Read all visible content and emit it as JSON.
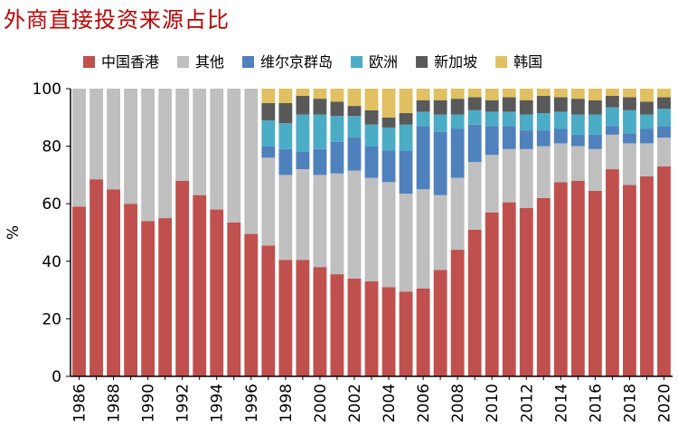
{
  "chart_data": {
    "type": "bar",
    "stacked": true,
    "title": "外商直接投资来源占比",
    "ylabel": "%",
    "ylim": [
      0,
      100
    ],
    "yticks": [
      0,
      20,
      40,
      60,
      80,
      100
    ],
    "x": [
      1986,
      1987,
      1988,
      1989,
      1990,
      1991,
      1992,
      1993,
      1994,
      1995,
      1996,
      1997,
      1998,
      1999,
      2000,
      2001,
      2002,
      2003,
      2004,
      2005,
      2006,
      2007,
      2008,
      2009,
      2010,
      2011,
      2012,
      2013,
      2014,
      2015,
      2016,
      2017,
      2018,
      2019,
      2020
    ],
    "xticklabels": [
      "1986",
      "1988",
      "1990",
      "1992",
      "1994",
      "1996",
      "1998",
      "2000",
      "2002",
      "2004",
      "2006",
      "2008",
      "2010",
      "2012",
      "2014",
      "2016",
      "2018",
      "2020"
    ],
    "legend_position": "top",
    "grid": false,
    "series": [
      {
        "name": "中国香港",
        "color": "#c0504d",
        "values": [
          59,
          68.5,
          65,
          60,
          54,
          55,
          68,
          63,
          58,
          53.5,
          49.5,
          45.5,
          40.5,
          40.5,
          38,
          35.5,
          34,
          33,
          31,
          29.5,
          30.5,
          37,
          44,
          51,
          57,
          60.5,
          58.5,
          62,
          67.5,
          68,
          64.5,
          72,
          66.5,
          69.5,
          73
        ]
      },
      {
        "name": "其他",
        "color": "#bfbfbf",
        "values": [
          41,
          31.5,
          35,
          40,
          46,
          45,
          32,
          37,
          42,
          46.5,
          50.5,
          30.5,
          29.5,
          31.5,
          32,
          35,
          37.5,
          36,
          36.5,
          34,
          34.5,
          26,
          25,
          23.5,
          20,
          18.5,
          20.5,
          18,
          13.5,
          12,
          14.5,
          12,
          14.5,
          11.5,
          10
        ]
      },
      {
        "name": "维尔京群岛",
        "color": "#4f81bd",
        "values": [
          0,
          0,
          0,
          0,
          0,
          0,
          0,
          0,
          0,
          0,
          0,
          4,
          9,
          6,
          9,
          11,
          11.5,
          11,
          11,
          15,
          22,
          22,
          17,
          13,
          10,
          8,
          6.5,
          5.5,
          5,
          4,
          5,
          3,
          3.5,
          5,
          4
        ]
      },
      {
        "name": "欧洲",
        "color": "#4bacc6",
        "values": [
          0,
          0,
          0,
          0,
          0,
          0,
          0,
          0,
          0,
          0,
          0,
          9,
          9,
          13,
          12,
          9,
          7.5,
          7.5,
          8,
          9,
          5,
          6,
          5,
          5,
          5,
          5,
          5.5,
          6,
          6,
          7,
          7,
          6.5,
          8,
          5,
          6
        ]
      },
      {
        "name": "新加坡",
        "color": "#595959",
        "values": [
          0,
          0,
          0,
          0,
          0,
          0,
          0,
          0,
          0,
          0,
          0,
          6,
          7,
          6.5,
          5.5,
          5,
          3.5,
          5,
          3.5,
          4,
          4,
          5,
          5.5,
          4.5,
          4,
          5,
          5,
          6,
          5,
          5.5,
          5,
          4,
          4.5,
          4.5,
          4
        ]
      },
      {
        "name": "韩国",
        "color": "#e0c060",
        "values": [
          0,
          0,
          0,
          0,
          0,
          0,
          0,
          0,
          0,
          0,
          0,
          5,
          5,
          2.5,
          3.5,
          4.5,
          6,
          7.5,
          10,
          8.5,
          4,
          4,
          3.5,
          3,
          4,
          3,
          4,
          2.5,
          3,
          3.5,
          4,
          2.5,
          3,
          4.5,
          3
        ]
      }
    ]
  }
}
